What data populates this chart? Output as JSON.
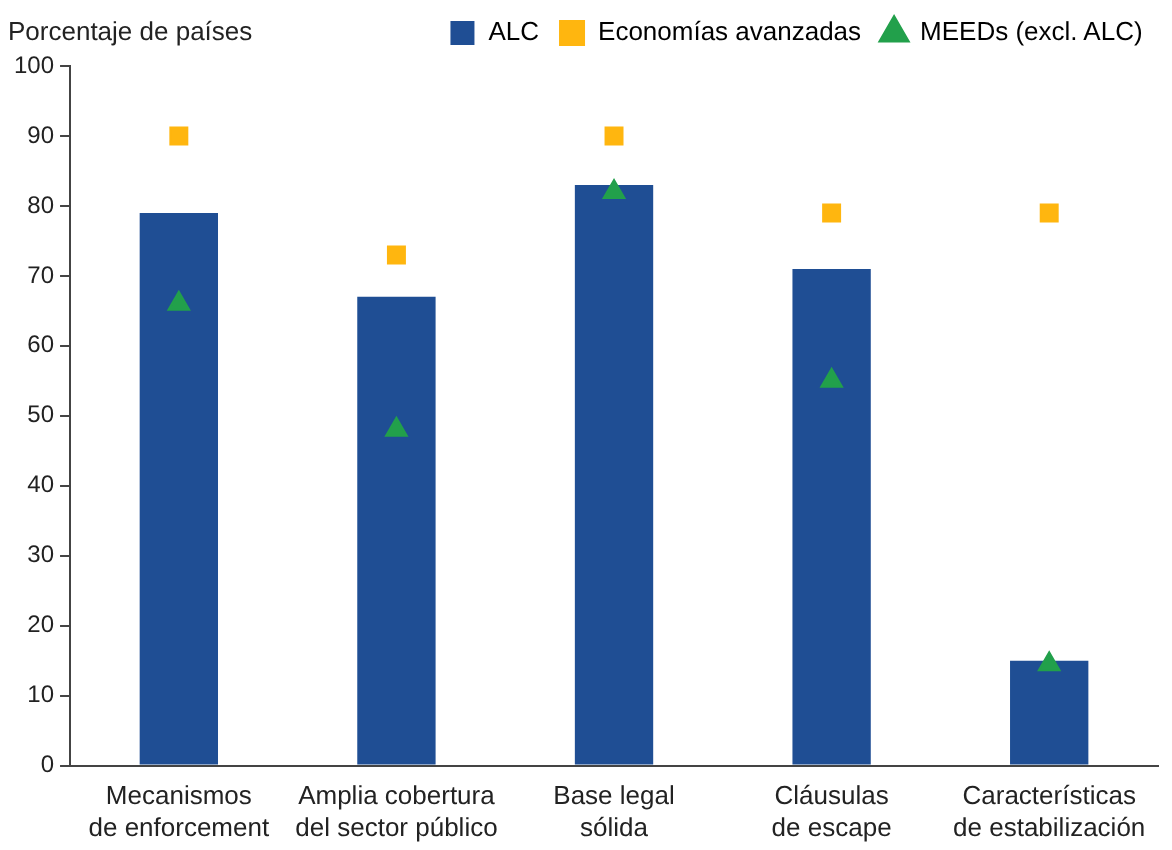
{
  "chart_data": {
    "type": "bar",
    "ylabel": "Porcentaje de países",
    "categories": [
      "Mecanismos\nde enforcement",
      "Amplia cobertura\ndel sector público",
      "Base legal\nsólida",
      "Cláusulas\nde escape",
      "Características\nde estabilización"
    ],
    "series": [
      {
        "name": "ALC",
        "color": "#1f4e94",
        "values": [
          79,
          67,
          83,
          71,
          15
        ]
      },
      {
        "name": "Economías avanzadas",
        "type": "scatter",
        "marker": "square",
        "color": "#ffb60f",
        "values": [
          90,
          73,
          90,
          79,
          79
        ]
      },
      {
        "name": "MEEDs (excl. ALC)",
        "type": "scatter",
        "marker": "triangle",
        "color": "#22a04b",
        "values": [
          66,
          48,
          82,
          55,
          14.5
        ]
      }
    ],
    "ylim": [
      0,
      100
    ],
    "yticks": [
      0,
      10,
      20,
      30,
      40,
      50,
      60,
      70,
      80,
      90,
      100
    ],
    "grid": false,
    "legend": "top right"
  }
}
